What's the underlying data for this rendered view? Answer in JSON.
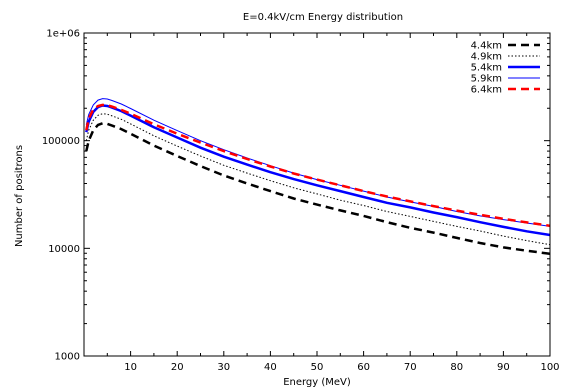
{
  "chart_data": {
    "type": "line",
    "title": "E=0.4kV/cm Energy distribution",
    "xlabel": "Energy (MeV)",
    "ylabel": "Number of positrons",
    "xlim": [
      0,
      100
    ],
    "ylim": [
      1000,
      1000000
    ],
    "yscale": "log",
    "xticks": [
      10,
      20,
      30,
      40,
      50,
      60,
      70,
      80,
      90,
      100
    ],
    "yticks": [
      {
        "value": 1000,
        "label": "1000"
      },
      {
        "value": 10000,
        "label": "10000"
      },
      {
        "value": 100000,
        "label": "100000"
      },
      {
        "value": 1000000,
        "label": "1e+06"
      }
    ],
    "grid": false,
    "legend_position": "top-right",
    "x": [
      0.5,
      1,
      2,
      3,
      4,
      5,
      6,
      8,
      10,
      15,
      20,
      25,
      30,
      35,
      40,
      45,
      50,
      55,
      60,
      65,
      70,
      75,
      80,
      85,
      90,
      95,
      100
    ],
    "series": [
      {
        "name": "4.4km",
        "color": "#000000",
        "style": "dashed-thick",
        "values": [
          80000,
          100000,
          125000,
          140000,
          145000,
          143000,
          138000,
          128000,
          116000,
          90000,
          72000,
          58000,
          47500,
          40000,
          34000,
          29000,
          25500,
          22500,
          20000,
          17500,
          15500,
          14000,
          12500,
          11200,
          10200,
          9500,
          8900
        ]
      },
      {
        "name": "4.9km",
        "color": "#000000",
        "style": "dotted",
        "values": [
          100000,
          125000,
          155000,
          172000,
          178000,
          176000,
          170000,
          158000,
          143000,
          111000,
          89000,
          72000,
          59000,
          50000,
          42500,
          36500,
          32000,
          28000,
          25000,
          22000,
          19800,
          17800,
          16000,
          14500,
          13000,
          11800,
          10800
        ]
      },
      {
        "name": "5.4km",
        "color": "#0000ff",
        "style": "solid-thick",
        "values": [
          120000,
          150000,
          185000,
          205000,
          212000,
          210000,
          203000,
          188000,
          171000,
          133000,
          107000,
          86000,
          71000,
          60000,
          51000,
          44000,
          38500,
          34000,
          30000,
          26500,
          24000,
          21500,
          19500,
          17500,
          15800,
          14400,
          13300
        ]
      },
      {
        "name": "5.9km",
        "color": "#0000ff",
        "style": "solid-thin",
        "values": [
          140000,
          175000,
          215000,
          238000,
          246000,
          244000,
          236000,
          219000,
          199000,
          155000,
          124000,
          100000,
          82500,
          69000,
          58500,
          50000,
          43500,
          38500,
          34000,
          30000,
          27000,
          24500,
          22000,
          20000,
          18500,
          17200,
          16000
        ]
      },
      {
        "name": "6.4km",
        "color": "#ff0000",
        "style": "dashed-thick",
        "values": [
          125000,
          160000,
          195000,
          210000,
          215000,
          213000,
          207000,
          193000,
          178000,
          142000,
          116000,
          96000,
          80000,
          67500,
          57500,
          49500,
          43500,
          38500,
          34000,
          30300,
          27300,
          24700,
          22400,
          20500,
          18800,
          17400,
          16200
        ]
      }
    ]
  }
}
